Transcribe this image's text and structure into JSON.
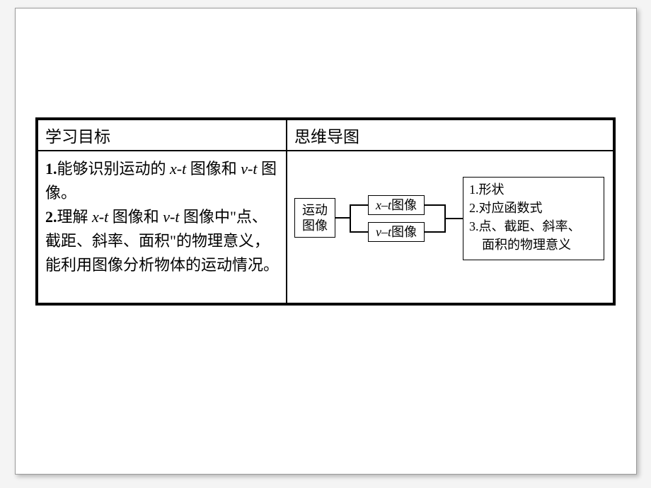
{
  "table": {
    "headers": {
      "left": "学习目标",
      "right": "思维导图"
    },
    "objectives": {
      "item1_num": "1",
      "item1_pre": "能够识别运动的 ",
      "item1_var1": "x-t",
      "item1_mid": " 图像和 ",
      "item1_var2": "v-t",
      "item1_post": " 图像。",
      "item2_num": "2",
      "item2_pre": "理解 ",
      "item2_var1": "x-t",
      "item2_mid1": " 图像和 ",
      "item2_var2": "v-t",
      "item2_mid2": " 图像中\"点、截距、斜率、面积\"的物理意义，能利用图像分析物体的运动情况。"
    }
  },
  "mindmap": {
    "root_l1": "运动",
    "root_l2": "图像",
    "mid1_var": "x–t",
    "mid1_sfx": "图像",
    "mid2_var": "v–t",
    "mid2_sfx": "图像",
    "list": {
      "l1": "1.形状",
      "l2": "2.对应函数式",
      "l3": "3.点、截距、斜率、",
      "l4": "面积的物理意义"
    }
  }
}
